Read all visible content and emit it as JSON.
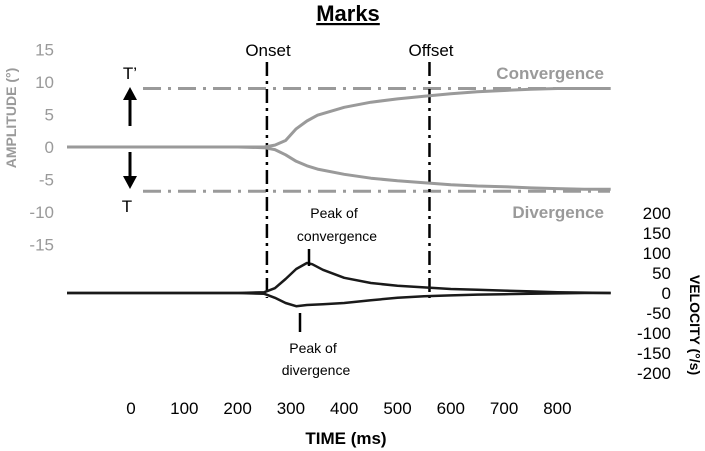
{
  "chart_data": {
    "type": "line",
    "title": "Marks",
    "xlabel": "TIME   (ms)",
    "ylabel_left": "AMPLITUDE (°)",
    "ylabel_right": "VELOCITY  (°/s)",
    "x_ticks": [
      0,
      100,
      200,
      300,
      400,
      500,
      600,
      700,
      800
    ],
    "y_left_ticks": [
      15,
      10,
      5,
      0,
      -5,
      -10,
      -15
    ],
    "y_right_ticks": [
      200,
      150,
      100,
      50,
      0,
      -50,
      -100,
      -150,
      -200
    ],
    "xlim": [
      -120,
      900
    ],
    "ylim_left": [
      -15,
      15
    ],
    "ylim_right": [
      -200,
      200
    ],
    "grid": false,
    "marks": [
      {
        "label": "Onset",
        "x": 255
      },
      {
        "label": "Offset",
        "x": 560
      }
    ],
    "reference_lines": [
      {
        "label": "T’",
        "y": 9
      },
      {
        "label": "T",
        "y": -6.8
      }
    ],
    "series": [
      {
        "name": "Convergence",
        "axis": "left",
        "color": "#9a9a9a",
        "x": [
          -120,
          0,
          100,
          200,
          250,
          270,
          290,
          310,
          330,
          350,
          400,
          450,
          500,
          550,
          600,
          650,
          700,
          750,
          800,
          850,
          900
        ],
        "y": [
          0,
          0,
          0,
          0,
          0,
          0.3,
          1.0,
          2.8,
          4.0,
          4.9,
          6.1,
          6.9,
          7.4,
          7.8,
          8.2,
          8.5,
          8.7,
          8.9,
          9.0,
          9.0,
          9.0
        ]
      },
      {
        "name": "Divergence",
        "axis": "left",
        "color": "#9a9a9a",
        "x": [
          -120,
          0,
          100,
          200,
          250,
          270,
          290,
          310,
          330,
          350,
          400,
          450,
          500,
          550,
          600,
          650,
          700,
          750,
          800,
          850,
          900
        ],
        "y": [
          0,
          0,
          0,
          0,
          -0.1,
          -0.4,
          -1.2,
          -2.2,
          -2.9,
          -3.4,
          -4.2,
          -4.8,
          -5.2,
          -5.5,
          -5.8,
          -6.0,
          -6.1,
          -6.3,
          -6.4,
          -6.5,
          -6.5
        ]
      },
      {
        "name": "Peak of convergence",
        "axis": "right",
        "color": "#1a1a1a",
        "x": [
          -120,
          0,
          100,
          200,
          250,
          270,
          290,
          310,
          330,
          340,
          360,
          400,
          450,
          500,
          550,
          600,
          650,
          700,
          750,
          800,
          850,
          900
        ],
        "y": [
          0,
          0,
          0,
          0,
          2,
          12,
          35,
          60,
          75,
          72,
          58,
          38,
          25,
          18,
          14,
          10,
          8,
          6,
          4,
          2,
          1,
          0
        ]
      },
      {
        "name": "Peak of divergence",
        "axis": "right",
        "color": "#1a1a1a",
        "x": [
          -120,
          0,
          100,
          200,
          250,
          270,
          290,
          310,
          330,
          360,
          400,
          450,
          500,
          550,
          600,
          650,
          700,
          750,
          800,
          850,
          900
        ],
        "y": [
          0,
          0,
          0,
          0,
          -2,
          -12,
          -25,
          -33,
          -30,
          -28,
          -25,
          -18,
          -12,
          -8,
          -6,
          -4,
          -3,
          -2,
          -1,
          0,
          0
        ]
      }
    ],
    "annotations": [
      {
        "text": "Peak of",
        "target": "Peak of convergence"
      },
      {
        "text": "convergence",
        "target": "Peak of convergence"
      },
      {
        "text": "Peak of",
        "target": "Peak of divergence"
      },
      {
        "text": "divergence",
        "target": "Peak of divergence"
      }
    ]
  }
}
